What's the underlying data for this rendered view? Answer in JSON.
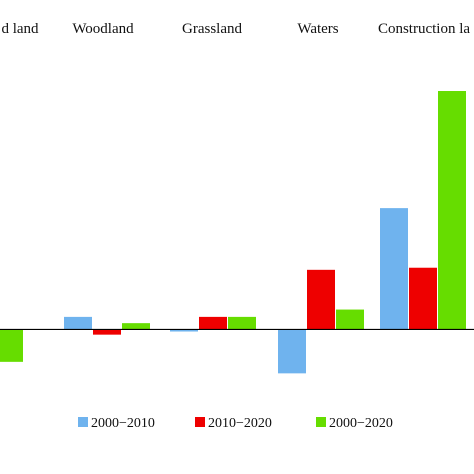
{
  "chart_data": {
    "type": "bar",
    "categories": [
      "Cultivated land",
      "Woodland",
      "Grassland",
      "Waters",
      "Construction land"
    ],
    "category_labels_visible": [
      "d land",
      "Woodland",
      "Grassland",
      "Waters",
      "Construction la"
    ],
    "series": [
      {
        "name": "2000−2010",
        "color": "#6fb3ee",
        "values": [
          null,
          0.12,
          -0.02,
          -0.42,
          1.16
        ]
      },
      {
        "name": "2010−2020",
        "color": "#ee0000",
        "values": [
          null,
          -0.05,
          0.12,
          0.57,
          0.59
        ]
      },
      {
        "name": "2000−2020",
        "color": "#66dd00",
        "values": [
          -0.31,
          0.06,
          0.12,
          0.19,
          2.28
        ]
      }
    ],
    "ylim": [
      -1.0,
      2.5
    ],
    "grid": false,
    "legend_position": "bottom"
  }
}
